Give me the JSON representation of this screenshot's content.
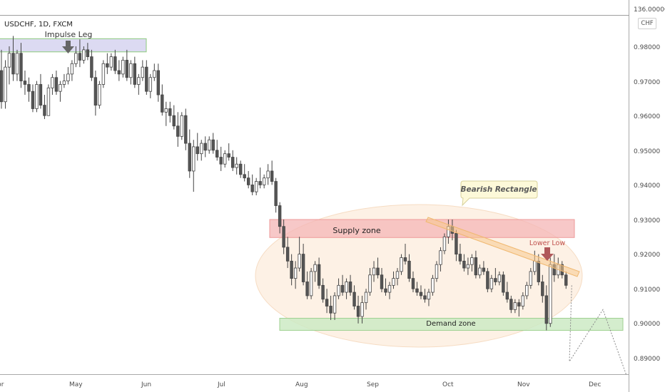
{
  "header": {
    "symbol": "USDCHF, 1D, FXCM",
    "currency": "CHF"
  },
  "chart_data": {
    "type": "candlestick",
    "price_axis": {
      "ticks": [
        "136.00000",
        "0.98000",
        "0.97000",
        "0.96000",
        "0.95000",
        "0.94000",
        "0.93000",
        "0.92000",
        "0.91000",
        "0.90000",
        "0.89000"
      ]
    },
    "time_axis": {
      "ticks": [
        "pr",
        "May",
        "Jun",
        "Jul",
        "Aug",
        "Sep",
        "Oct",
        "Nov",
        "Dec"
      ]
    },
    "annotations": {
      "impulse_leg": "Impulse Leg",
      "bearish_rectangle": "Bearish Rectangle",
      "supply_zone": "Supply zone",
      "demand_zone": "Demand zone",
      "lower_low": "Lower Low"
    },
    "zones": {
      "impulse_top": [
        0.9822,
        0.9784
      ],
      "supply": [
        0.93,
        0.9248
      ],
      "demand": [
        0.9015,
        0.898
      ]
    },
    "colors": {
      "up": "#ffffff",
      "down": "#555555",
      "wick": "#444444",
      "supply": "#f4b6b6",
      "demand": "#cdeac4",
      "impulse": "#dcdaf2",
      "arrow": "#b0585a",
      "ellipse": "#fbe7d4",
      "trend": "#f7c98e"
    },
    "candles": [
      [
        0.973,
        0.979,
        0.962,
        0.964
      ],
      [
        0.964,
        0.976,
        0.962,
        0.974
      ],
      [
        0.974,
        0.98,
        0.969,
        0.978
      ],
      [
        0.978,
        0.983,
        0.97,
        0.972
      ],
      [
        0.972,
        0.979,
        0.97,
        0.978
      ],
      [
        0.978,
        0.981,
        0.968,
        0.97
      ],
      [
        0.97,
        0.973,
        0.966,
        0.969
      ],
      [
        0.969,
        0.971,
        0.964,
        0.967
      ],
      [
        0.967,
        0.969,
        0.961,
        0.962
      ],
      [
        0.962,
        0.97,
        0.961,
        0.969
      ],
      [
        0.969,
        0.972,
        0.962,
        0.963
      ],
      [
        0.963,
        0.966,
        0.959,
        0.96
      ],
      [
        0.96,
        0.969,
        0.96,
        0.968
      ],
      [
        0.968,
        0.972,
        0.966,
        0.971
      ],
      [
        0.971,
        0.973,
        0.966,
        0.967
      ],
      [
        0.967,
        0.97,
        0.964,
        0.969
      ],
      [
        0.969,
        0.972,
        0.968,
        0.97
      ],
      [
        0.97,
        0.974,
        0.969,
        0.972
      ],
      [
        0.972,
        0.976,
        0.97,
        0.975
      ],
      [
        0.975,
        0.98,
        0.974,
        0.978
      ],
      [
        0.978,
        0.982,
        0.974,
        0.976
      ],
      [
        0.976,
        0.98,
        0.975,
        0.979
      ],
      [
        0.979,
        0.981,
        0.976,
        0.977
      ],
      [
        0.977,
        0.979,
        0.97,
        0.971
      ],
      [
        0.971,
        0.973,
        0.96,
        0.963
      ],
      [
        0.963,
        0.97,
        0.962,
        0.969
      ],
      [
        0.969,
        0.976,
        0.968,
        0.975
      ],
      [
        0.975,
        0.978,
        0.972,
        0.974
      ],
      [
        0.974,
        0.978,
        0.973,
        0.977
      ],
      [
        0.977,
        0.979,
        0.972,
        0.973
      ],
      [
        0.973,
        0.976,
        0.97,
        0.972
      ],
      [
        0.972,
        0.977,
        0.971,
        0.976
      ],
      [
        0.976,
        0.979,
        0.97,
        0.971
      ],
      [
        0.971,
        0.976,
        0.969,
        0.975
      ],
      [
        0.975,
        0.977,
        0.968,
        0.969
      ],
      [
        0.969,
        0.972,
        0.966,
        0.971
      ],
      [
        0.971,
        0.976,
        0.97,
        0.974
      ],
      [
        0.974,
        0.976,
        0.966,
        0.967
      ],
      [
        0.967,
        0.972,
        0.965,
        0.971
      ],
      [
        0.971,
        0.975,
        0.97,
        0.973
      ],
      [
        0.973,
        0.975,
        0.964,
        0.966
      ],
      [
        0.966,
        0.969,
        0.96,
        0.961
      ],
      [
        0.961,
        0.964,
        0.957,
        0.962
      ],
      [
        0.962,
        0.964,
        0.958,
        0.96
      ],
      [
        0.96,
        0.963,
        0.956,
        0.957
      ],
      [
        0.957,
        0.961,
        0.951,
        0.954
      ],
      [
        0.954,
        0.961,
        0.953,
        0.96
      ],
      [
        0.96,
        0.962,
        0.95,
        0.952
      ],
      [
        0.952,
        0.956,
        0.942,
        0.944
      ],
      [
        0.944,
        0.953,
        0.938,
        0.951
      ],
      [
        0.951,
        0.955,
        0.947,
        0.949
      ],
      [
        0.949,
        0.953,
        0.947,
        0.952
      ],
      [
        0.952,
        0.954,
        0.948,
        0.95
      ],
      [
        0.95,
        0.954,
        0.949,
        0.953
      ],
      [
        0.953,
        0.955,
        0.949,
        0.95
      ],
      [
        0.95,
        0.953,
        0.947,
        0.948
      ],
      [
        0.948,
        0.951,
        0.944,
        0.946
      ],
      [
        0.946,
        0.95,
        0.945,
        0.949
      ],
      [
        0.949,
        0.952,
        0.947,
        0.948
      ],
      [
        0.948,
        0.95,
        0.944,
        0.945
      ],
      [
        0.945,
        0.948,
        0.943,
        0.946
      ],
      [
        0.946,
        0.947,
        0.942,
        0.943
      ],
      [
        0.943,
        0.946,
        0.941,
        0.942
      ],
      [
        0.942,
        0.944,
        0.939,
        0.94
      ],
      [
        0.94,
        0.943,
        0.937,
        0.938
      ],
      [
        0.938,
        0.942,
        0.937,
        0.941
      ],
      [
        0.941,
        0.945,
        0.939,
        0.94
      ],
      [
        0.94,
        0.943,
        0.939,
        0.942
      ],
      [
        0.942,
        0.946,
        0.94,
        0.944
      ],
      [
        0.944,
        0.947,
        0.94,
        0.941
      ],
      [
        0.941,
        0.942,
        0.932,
        0.934
      ],
      [
        0.934,
        0.935,
        0.926,
        0.928
      ],
      [
        0.928,
        0.93,
        0.92,
        0.922
      ],
      [
        0.922,
        0.925,
        0.916,
        0.918
      ],
      [
        0.918,
        0.92,
        0.911,
        0.913
      ],
      [
        0.913,
        0.918,
        0.91,
        0.916
      ],
      [
        0.916,
        0.925,
        0.915,
        0.92
      ],
      [
        0.92,
        0.923,
        0.911,
        0.912
      ],
      [
        0.912,
        0.915,
        0.907,
        0.908
      ],
      [
        0.908,
        0.916,
        0.907,
        0.915
      ],
      [
        0.915,
        0.918,
        0.912,
        0.917
      ],
      [
        0.917,
        0.919,
        0.91,
        0.911
      ],
      [
        0.911,
        0.913,
        0.906,
        0.907
      ],
      [
        0.907,
        0.91,
        0.903,
        0.905
      ],
      [
        0.905,
        0.908,
        0.901,
        0.903
      ],
      [
        0.903,
        0.909,
        0.901,
        0.908
      ],
      [
        0.908,
        0.913,
        0.907,
        0.911
      ],
      [
        0.911,
        0.914,
        0.908,
        0.909
      ],
      [
        0.909,
        0.913,
        0.907,
        0.912
      ],
      [
        0.912,
        0.914,
        0.908,
        0.909
      ],
      [
        0.909,
        0.911,
        0.904,
        0.905
      ],
      [
        0.905,
        0.908,
        0.9,
        0.902
      ],
      [
        0.902,
        0.908,
        0.9,
        0.906
      ],
      [
        0.906,
        0.91,
        0.904,
        0.909
      ],
      [
        0.909,
        0.916,
        0.908,
        0.914
      ],
      [
        0.914,
        0.918,
        0.912,
        0.916
      ],
      [
        0.916,
        0.919,
        0.913,
        0.914
      ],
      [
        0.914,
        0.916,
        0.909,
        0.91
      ],
      [
        0.91,
        0.913,
        0.908,
        0.909
      ],
      [
        0.909,
        0.912,
        0.907,
        0.911
      ],
      [
        0.911,
        0.915,
        0.91,
        0.913
      ],
      [
        0.913,
        0.916,
        0.911,
        0.915
      ],
      [
        0.915,
        0.92,
        0.914,
        0.919
      ],
      [
        0.919,
        0.923,
        0.917,
        0.918
      ],
      [
        0.918,
        0.92,
        0.912,
        0.913
      ],
      [
        0.913,
        0.915,
        0.909,
        0.91
      ],
      [
        0.91,
        0.912,
        0.908,
        0.909
      ],
      [
        0.909,
        0.911,
        0.907,
        0.908
      ],
      [
        0.908,
        0.91,
        0.906,
        0.907
      ],
      [
        0.907,
        0.91,
        0.905,
        0.909
      ],
      [
        0.909,
        0.914,
        0.908,
        0.913
      ],
      [
        0.913,
        0.918,
        0.912,
        0.917
      ],
      [
        0.917,
        0.922,
        0.915,
        0.921
      ],
      [
        0.921,
        0.926,
        0.92,
        0.925
      ],
      [
        0.925,
        0.93,
        0.923,
        0.928
      ],
      [
        0.928,
        0.93,
        0.924,
        0.926
      ],
      [
        0.926,
        0.927,
        0.918,
        0.92
      ],
      [
        0.92,
        0.923,
        0.917,
        0.918
      ],
      [
        0.918,
        0.92,
        0.915,
        0.916
      ],
      [
        0.916,
        0.919,
        0.914,
        0.917
      ],
      [
        0.917,
        0.92,
        0.915,
        0.919
      ],
      [
        0.919,
        0.921,
        0.913,
        0.914
      ],
      [
        0.914,
        0.917,
        0.913,
        0.916
      ],
      [
        0.916,
        0.918,
        0.914,
        0.915
      ],
      [
        0.915,
        0.916,
        0.909,
        0.91
      ],
      [
        0.91,
        0.914,
        0.909,
        0.913
      ],
      [
        0.913,
        0.916,
        0.911,
        0.912
      ],
      [
        0.912,
        0.915,
        0.911,
        0.914
      ],
      [
        0.914,
        0.915,
        0.908,
        0.909
      ],
      [
        0.909,
        0.912,
        0.906,
        0.907
      ],
      [
        0.907,
        0.908,
        0.903,
        0.904
      ],
      [
        0.904,
        0.907,
        0.903,
        0.906
      ],
      [
        0.906,
        0.907,
        0.902,
        0.905
      ],
      [
        0.905,
        0.909,
        0.904,
        0.908
      ],
      [
        0.908,
        0.912,
        0.907,
        0.911
      ],
      [
        0.911,
        0.916,
        0.91,
        0.915
      ],
      [
        0.915,
        0.921,
        0.914,
        0.918
      ],
      [
        0.918,
        0.92,
        0.911,
        0.912
      ],
      [
        0.912,
        0.914,
        0.906,
        0.908
      ],
      [
        0.908,
        0.911,
        0.898,
        0.9
      ],
      [
        0.9,
        0.919,
        0.899,
        0.917
      ],
      [
        0.917,
        0.92,
        0.912,
        0.914
      ],
      [
        0.914,
        0.919,
        0.913,
        0.917
      ],
      [
        0.917,
        0.918,
        0.913,
        0.914
      ],
      [
        0.914,
        0.915,
        0.91,
        0.911
      ]
    ],
    "projection": [
      [
        0.911,
        0.889
      ],
      [
        0.889,
        0.904
      ],
      [
        0.904,
        0.885
      ]
    ]
  }
}
